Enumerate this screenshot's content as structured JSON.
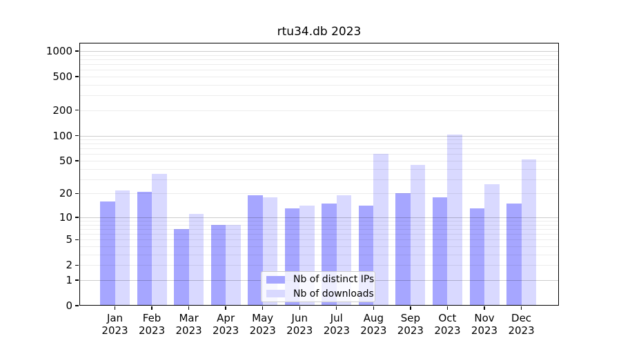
{
  "title": "rtu34.db 2023",
  "chart_data": {
    "type": "bar",
    "title": "rtu34.db 2023",
    "categories": [
      "Jan",
      "Feb",
      "Mar",
      "Apr",
      "May",
      "Jun",
      "Jul",
      "Aug",
      "Sep",
      "Oct",
      "Nov",
      "Dec"
    ],
    "category_year": "2023",
    "series": [
      {
        "key": "distinct-ips",
        "name": "Nb of distinct IPs",
        "color": "#a6a6ff",
        "values": [
          16,
          21,
          7,
          8,
          19,
          13,
          15,
          14,
          20,
          18,
          13,
          15
        ]
      },
      {
        "key": "downloads",
        "name": "Nb of downloads",
        "color": "#d9d9ff",
        "values": [
          22,
          35,
          11,
          8,
          18,
          14,
          19,
          60,
          45,
          103,
          26,
          52
        ]
      }
    ],
    "xlabel": "",
    "ylabel": "",
    "yscale": "log1p",
    "yticks": [
      0,
      1,
      2,
      5,
      10,
      20,
      50,
      100,
      200,
      500,
      1000
    ],
    "ylim": [
      0,
      1250
    ],
    "grid": true,
    "legend_position": "lower center"
  },
  "colors": {
    "bar_distinct_ips": "#a6a6ff",
    "bar_downloads": "#d9d9ff",
    "grid_major": "#c9c9c9",
    "grid_minor": "#ececec",
    "axes_frame": "#000000",
    "background": "#ffffff"
  }
}
